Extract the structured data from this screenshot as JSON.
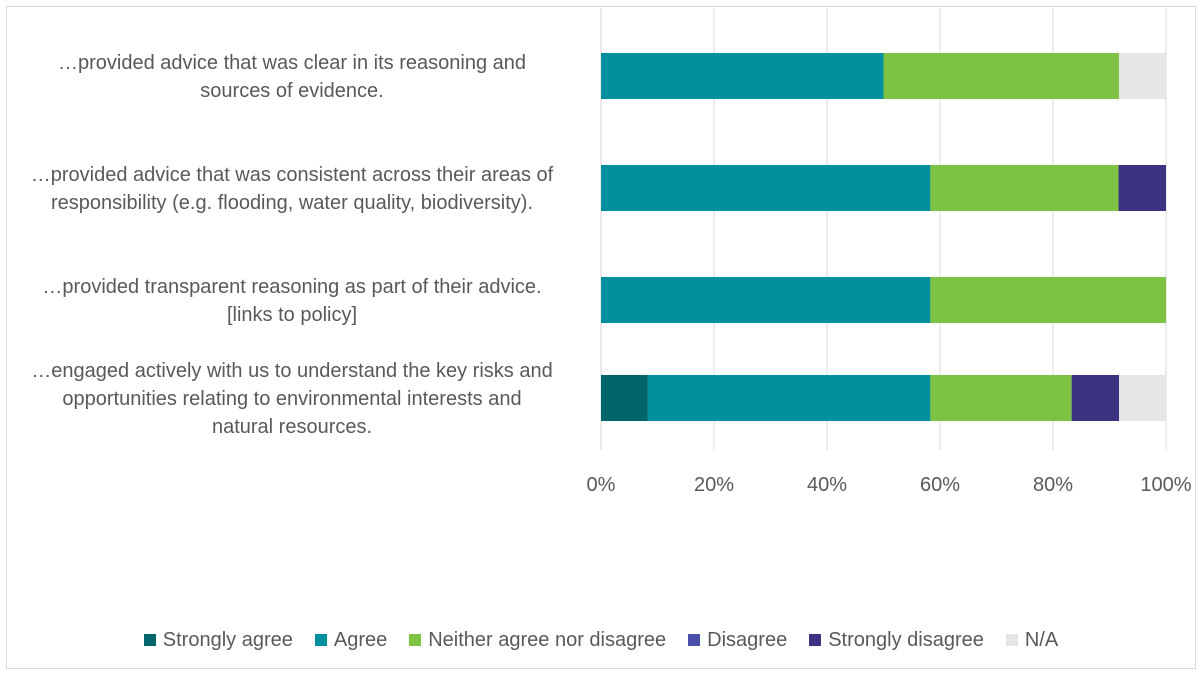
{
  "chart_data": {
    "type": "bar",
    "orientation": "horizontal",
    "stacked": "percent",
    "categories": [
      [
        "…provided advice that was clear in its reasoning and",
        "sources of evidence."
      ],
      [
        "…provided advice that was consistent across their areas of",
        "responsibility (e.g. flooding, water quality, biodiversity)."
      ],
      [
        "…provided transparent reasoning as part of their advice.",
        "[links to policy]"
      ],
      [
        "…engaged actively with us to understand the key risks and",
        "opportunities relating to environmental interests and",
        "natural resources."
      ]
    ],
    "series": [
      {
        "name": "Strongly agree",
        "color": "#00666a",
        "values": [
          0,
          0,
          0,
          8.3
        ]
      },
      {
        "name": "Agree",
        "color": "#00909e",
        "values": [
          50,
          58.3,
          58.3,
          50
        ]
      },
      {
        "name": "Neither agree nor disagree",
        "color": "#7dc242",
        "values": [
          41.7,
          33.3,
          41.7,
          25
        ]
      },
      {
        "name": "Disagree",
        "color": "#4a4fa8",
        "values": [
          0,
          0,
          0,
          0
        ]
      },
      {
        "name": "Strongly disagree",
        "color": "#3c3282",
        "values": [
          0,
          8.4,
          0,
          8.4
        ]
      },
      {
        "name": "N/A",
        "color": "#e6e6e6",
        "values": [
          8.3,
          0,
          0,
          8.3
        ]
      }
    ],
    "xticks": [
      "0%",
      "20%",
      "40%",
      "60%",
      "80%",
      "100%"
    ],
    "xlim": [
      0,
      100
    ],
    "grid": true,
    "legend_position": "bottom"
  }
}
